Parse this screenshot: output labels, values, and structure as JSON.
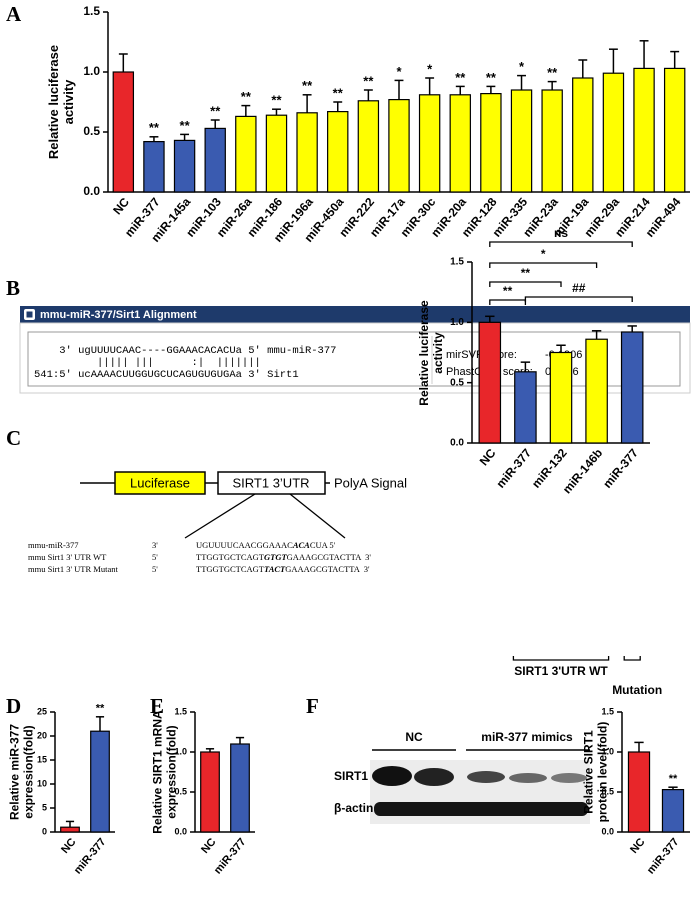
{
  "panel_labels": [
    "A",
    "B",
    "C",
    "D",
    "E",
    "F"
  ],
  "alignment": {
    "title": "mmu-miR-377/Sirt1 Alignment",
    "lines": [
      "    3' ugUUUUCAAC----GGAAACACACUa 5' mmu-miR-377",
      "          ||||| |||      :|  |||||||",
      "541:5' ucAAAACUUGGUGCUCAGUGUGUGAa 3' Sirt1"
    ],
    "scores": [
      {
        "label": "mirSVR score:",
        "value": "-0.1906"
      },
      {
        "label": "PhastCons score:",
        "value": "0.6166"
      }
    ]
  },
  "construct": {
    "elements": [
      "Luciferase",
      "SIRT1 3’UTR",
      "PolyA Signal"
    ],
    "sequences": [
      {
        "label": "mmu-miR-377",
        "end": "3'",
        "parts": [
          "UGUUUUCAACGGAAAC",
          "ACA",
          "CUA 5'"
        ]
      },
      {
        "label": "mmu Sirt1 3' UTR WT",
        "end": "5'",
        "parts": [
          "TTGGTGCTCAGT",
          "GTGT",
          "GAAAGCGTACTTA  3'"
        ]
      },
      {
        "label": "mmu Sirt1 3' UTR Mutant",
        "end": "5'",
        "parts": [
          "TTGGTGCTCAGT",
          "TACT",
          "GAAAGCGTACTTA  3'"
        ]
      }
    ]
  },
  "blot": {
    "groups": [
      "NC",
      "miR-377 mimics"
    ],
    "rows": [
      "SIRT1",
      "β-actin"
    ]
  },
  "chart_data": [
    {
      "type": "bar",
      "y_label": "Relative luciferase activity",
      "categories": [
        "NC",
        "miR-377",
        "miR-145a",
        "miR-103",
        "miR-26a",
        "miR-186",
        "miR-196a",
        "miR-450a",
        "miR-222",
        "miR-17a",
        "miR-30c",
        "miR-20a",
        "miR-128",
        "miR-335",
        "miR-23a",
        "miR-19a",
        "miR-29a",
        "miR-214",
        "miR-494"
      ],
      "values": [
        1.0,
        0.42,
        0.43,
        0.53,
        0.63,
        0.64,
        0.66,
        0.67,
        0.76,
        0.77,
        0.81,
        0.81,
        0.82,
        0.85,
        0.85,
        0.95,
        0.99,
        1.03,
        1.03
      ],
      "errors": [
        0.15,
        0.04,
        0.05,
        0.07,
        0.09,
        0.05,
        0.15,
        0.08,
        0.09,
        0.16,
        0.14,
        0.07,
        0.06,
        0.12,
        0.07,
        0.15,
        0.2,
        0.23,
        0.14
      ],
      "significance": [
        null,
        "**",
        "**",
        "**",
        "**",
        "**",
        "**",
        "**",
        "**",
        "*",
        "*",
        "**",
        "**",
        "*",
        "**",
        null,
        null,
        null,
        null
      ],
      "colors": [
        "#e8262a",
        "#3a5bb0",
        "#3a5bb0",
        "#3a5bb0",
        "#ffff00",
        "#ffff00",
        "#ffff00",
        "#ffff00",
        "#ffff00",
        "#ffff00",
        "#ffff00",
        "#ffff00",
        "#ffff00",
        "#ffff00",
        "#ffff00",
        "#ffff00",
        "#ffff00",
        "#ffff00",
        "#ffff00"
      ],
      "ylim": [
        0,
        1.5
      ],
      "yticks": [
        {
          "value": 0,
          "label": "0.0"
        },
        0.5,
        {
          "value": 1,
          "label": "1.0"
        },
        1.5
      ]
    },
    {
      "type": "bar",
      "y_label": "Relative luciferase activity",
      "categories": [
        "NC",
        "miR-377",
        "miR-132",
        "miR-146b",
        "miR-377"
      ],
      "values": [
        1.0,
        0.59,
        0.75,
        0.86,
        0.92
      ],
      "errors": [
        0.05,
        0.08,
        0.06,
        0.07,
        0.05
      ],
      "colors": [
        "#e8262a",
        "#3a5bb0",
        "#ffff00",
        "#ffff00",
        "#3a5bb0"
      ],
      "comparisons": [
        "**",
        "**",
        "*",
        "ns",
        "##"
      ],
      "groups": [
        "SIRT1 3'UTR WT",
        "Mutation"
      ],
      "ylim": [
        0,
        1.5
      ],
      "yticks": [
        {
          "value": 0,
          "label": "0.0"
        },
        0.5,
        {
          "value": 1,
          "label": "1.0"
        },
        1.5
      ]
    },
    {
      "type": "bar",
      "y_label": "Relative miR-377 expression(fold)",
      "categories": [
        "NC",
        "miR-377"
      ],
      "values": [
        1.0,
        21
      ],
      "errors": [
        1.2,
        3
      ],
      "significance": [
        null,
        "**"
      ],
      "colors": [
        "#e8262a",
        "#3a5bb0"
      ],
      "ylim": [
        0,
        25
      ],
      "yticks": [
        0,
        5,
        10,
        15,
        20,
        25
      ]
    },
    {
      "type": "bar",
      "y_label": "Relative SIRT1 mRNA expression(fold)",
      "categories": [
        "NC",
        "miR-377"
      ],
      "values": [
        1.0,
        1.1
      ],
      "errors": [
        0.04,
        0.08
      ],
      "colors": [
        "#e8262a",
        "#3a5bb0"
      ],
      "ylim": [
        0,
        1.5
      ],
      "yticks": [
        {
          "value": 0,
          "label": "0.0"
        },
        0.5,
        {
          "value": 1,
          "label": "1.0"
        },
        1.5
      ]
    },
    {
      "type": "bar",
      "y_label": "Relative SIRT1 protein level(fold)",
      "categories": [
        "NC",
        "miR-377"
      ],
      "values": [
        1.0,
        0.53
      ],
      "errors": [
        0.12,
        0.03
      ],
      "significance": [
        null,
        "**"
      ],
      "colors": [
        "#e8262a",
        "#3a5bb0"
      ],
      "ylim": [
        0,
        1.5
      ],
      "yticks": [
        {
          "value": 0,
          "label": "0.0"
        },
        0.5,
        {
          "value": 1,
          "label": "1.0"
        },
        1.5
      ]
    }
  ]
}
